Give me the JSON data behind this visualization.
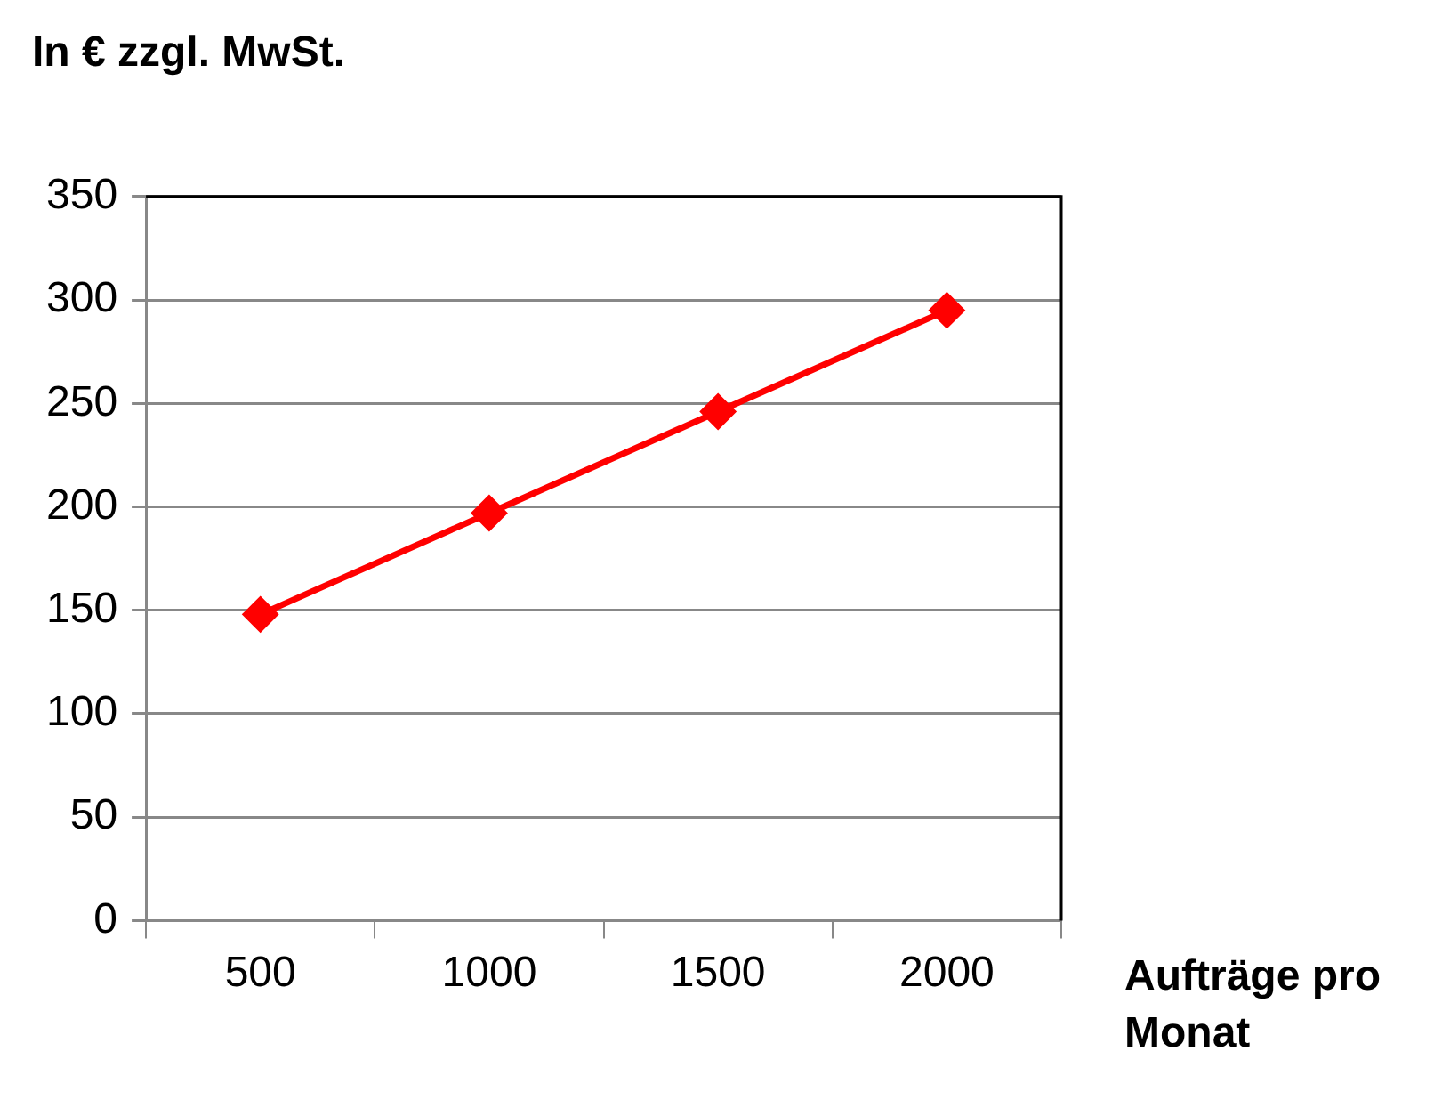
{
  "chart_data": {
    "type": "line",
    "ylabel": "In € zzgl. MwSt.",
    "xlabel": "Aufträge pro Monat",
    "categories": [
      "500",
      "1000",
      "1500",
      "2000"
    ],
    "series": [
      {
        "color": "#ff0000",
        "values": [
          148,
          197,
          246,
          295
        ]
      }
    ],
    "ylim": [
      0,
      350
    ],
    "yticks": [
      0,
      50,
      100,
      150,
      200,
      250,
      300,
      350
    ],
    "grid": "y",
    "legend": false,
    "marker": "diamond",
    "line_style": "solid"
  }
}
